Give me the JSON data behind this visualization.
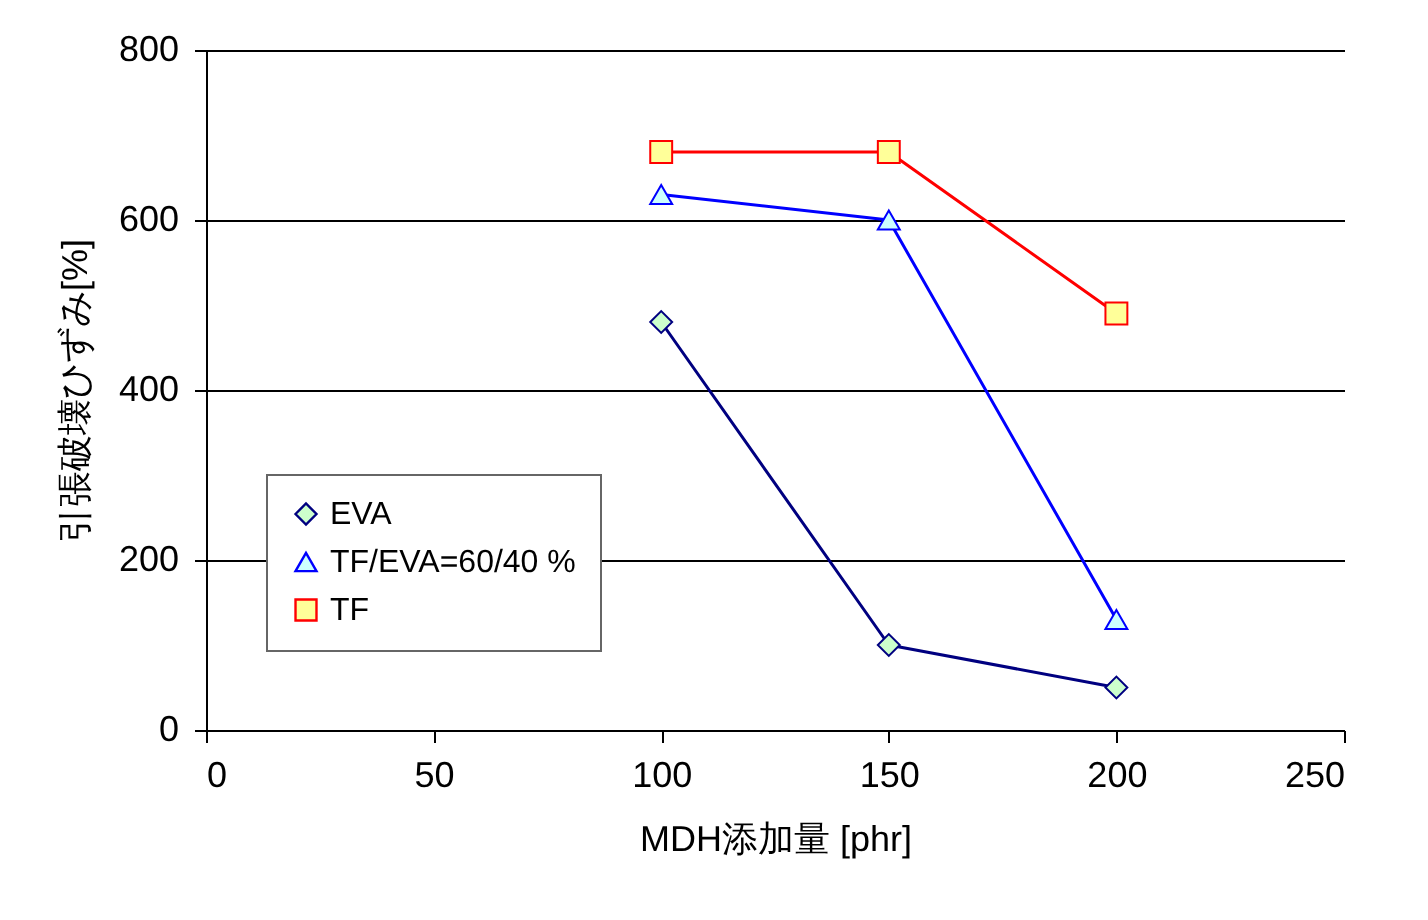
{
  "chart_data": {
    "type": "line",
    "xlabel": "MDH添加量 [phr]",
    "ylabel": "引張破壊ひずみ[%]",
    "xlim": [
      0,
      250
    ],
    "xticks": [
      0,
      50,
      100,
      150,
      200,
      250
    ],
    "ylim": [
      0,
      800
    ],
    "yticks": [
      0,
      200,
      400,
      600,
      800
    ],
    "grid": "y",
    "legend": "bottom left",
    "line_style": "solid",
    "x": [
      100,
      150,
      200
    ],
    "series": [
      {
        "name": "EVA",
        "color": "#000080",
        "marker": "diamond",
        "values": [
          480,
          100,
          50
        ]
      },
      {
        "name": "TF/EVA=60/40 %",
        "color": "#0000ff",
        "marker": "triangle",
        "values": [
          630,
          600,
          130
        ]
      },
      {
        "name": "TF",
        "color": "#ff0000",
        "marker": "square",
        "values": [
          680,
          680,
          490
        ]
      }
    ]
  }
}
